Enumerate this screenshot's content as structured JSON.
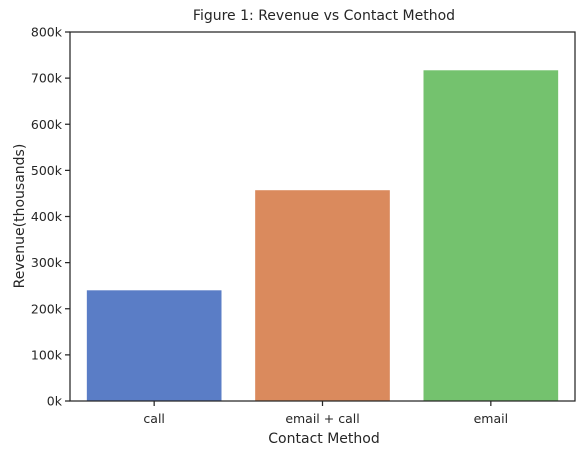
{
  "chart_data": {
    "type": "bar",
    "title": "Figure 1: Revenue vs Contact Method",
    "xlabel": "Contact Method",
    "ylabel": "Revenue(thousands)",
    "categories": [
      "call",
      "email + call",
      "email"
    ],
    "values": [
      240000,
      457000,
      717000
    ],
    "colors": [
      "#5a7dc6",
      "#da8a5d",
      "#74c26e"
    ],
    "ylim": [
      0,
      800000
    ],
    "yticks": [
      0,
      100000,
      200000,
      300000,
      400000,
      500000,
      600000,
      700000,
      800000
    ],
    "ytick_labels": [
      "0k",
      "100k",
      "200k",
      "300k",
      "400k",
      "500k",
      "600k",
      "700k",
      "800k"
    ],
    "grid": false,
    "legend": "none"
  }
}
